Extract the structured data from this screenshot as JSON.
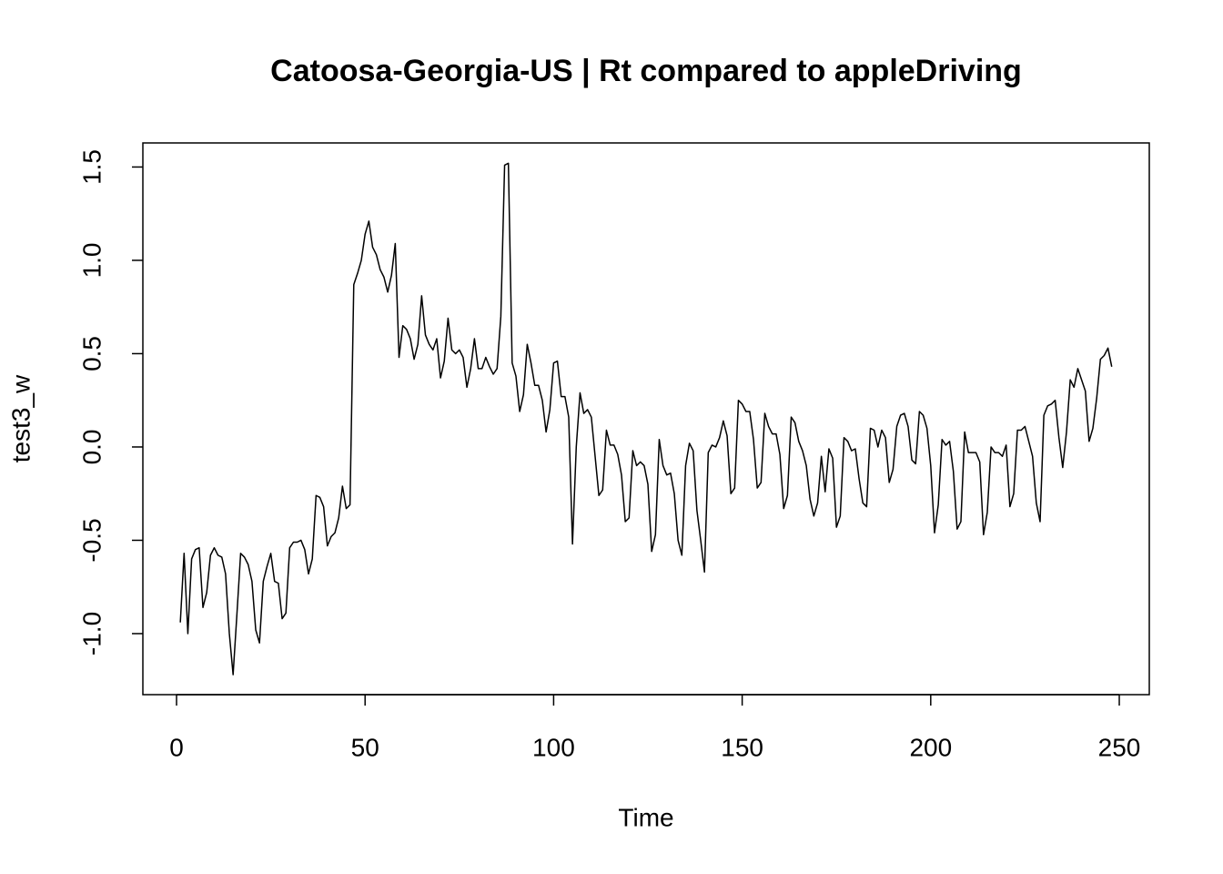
{
  "chart_data": {
    "type": "line",
    "title": "Catoosa-Georgia-US | Rt compared to appleDriving",
    "xlabel": "Time",
    "ylabel": "test3_w",
    "x": [
      1,
      2,
      3,
      4,
      5,
      6,
      7,
      8,
      9,
      10,
      11,
      12,
      13,
      14,
      15,
      16,
      17,
      18,
      19,
      20,
      21,
      22,
      23,
      24,
      25,
      26,
      27,
      28,
      29,
      30,
      31,
      32,
      33,
      34,
      35,
      36,
      37,
      38,
      39,
      40,
      41,
      42,
      43,
      44,
      45,
      46,
      47,
      48,
      49,
      50,
      51,
      52,
      53,
      54,
      55,
      56,
      57,
      58,
      59,
      60,
      61,
      62,
      63,
      64,
      65,
      66,
      67,
      68,
      69,
      70,
      71,
      72,
      73,
      74,
      75,
      76,
      77,
      78,
      79,
      80,
      81,
      82,
      83,
      84,
      85,
      86,
      87,
      88,
      89,
      90,
      91,
      92,
      93,
      94,
      95,
      96,
      97,
      98,
      99,
      100,
      101,
      102,
      103,
      104,
      105,
      106,
      107,
      108,
      109,
      110,
      111,
      112,
      113,
      114,
      115,
      116,
      117,
      118,
      119,
      120,
      121,
      122,
      123,
      124,
      125,
      126,
      127,
      128,
      129,
      130,
      131,
      132,
      133,
      134,
      135,
      136,
      137,
      138,
      139,
      140,
      141,
      142,
      143,
      144,
      145,
      146,
      147,
      148,
      149,
      150,
      151,
      152,
      153,
      154,
      155,
      156,
      157,
      158,
      159,
      160,
      161,
      162,
      163,
      164,
      165,
      166,
      167,
      168,
      169,
      170,
      171,
      172,
      173,
      174,
      175,
      176,
      177,
      178,
      179,
      180,
      181,
      182,
      183,
      184,
      185,
      186,
      187,
      188,
      189,
      190,
      191,
      192,
      193,
      194,
      195,
      196,
      197,
      198,
      199,
      200,
      201,
      202,
      203,
      204,
      205,
      206,
      207,
      208,
      209,
      210,
      211,
      212,
      213,
      214,
      215,
      216,
      217,
      218,
      219,
      220,
      221,
      222,
      223,
      224,
      225,
      226,
      227,
      228,
      229,
      230,
      231,
      232,
      233,
      234,
      235,
      236,
      237,
      238,
      239,
      240,
      241,
      242,
      243,
      244,
      245,
      246,
      247,
      248
    ],
    "series": [
      {
        "name": "test3_w",
        "color": "#000000",
        "values": [
          -0.94,
          -0.57,
          -1.0,
          -0.6,
          -0.55,
          -0.54,
          -0.86,
          -0.78,
          -0.58,
          -0.54,
          -0.58,
          -0.59,
          -0.68,
          -1.0,
          -1.22,
          -0.9,
          -0.57,
          -0.59,
          -0.63,
          -0.72,
          -0.98,
          -1.05,
          -0.72,
          -0.64,
          -0.57,
          -0.72,
          -0.73,
          -0.92,
          -0.89,
          -0.54,
          -0.51,
          -0.51,
          -0.5,
          -0.55,
          -0.68,
          -0.6,
          -0.26,
          -0.27,
          -0.32,
          -0.53,
          -0.48,
          -0.46,
          -0.38,
          -0.21,
          -0.33,
          -0.31,
          0.87,
          0.93,
          1.0,
          1.14,
          1.21,
          1.07,
          1.03,
          0.95,
          0.91,
          0.83,
          0.92,
          1.09,
          0.48,
          0.65,
          0.63,
          0.58,
          0.47,
          0.55,
          0.81,
          0.6,
          0.55,
          0.52,
          0.58,
          0.37,
          0.46,
          0.69,
          0.52,
          0.5,
          0.52,
          0.48,
          0.32,
          0.42,
          0.58,
          0.42,
          0.42,
          0.48,
          0.43,
          0.39,
          0.42,
          0.7,
          1.51,
          1.52,
          0.45,
          0.38,
          0.19,
          0.28,
          0.55,
          0.45,
          0.33,
          0.33,
          0.25,
          0.08,
          0.2,
          0.45,
          0.46,
          0.27,
          0.27,
          0.16,
          -0.52,
          0.0,
          0.29,
          0.18,
          0.2,
          0.16,
          -0.05,
          -0.26,
          -0.23,
          0.09,
          0.01,
          0.01,
          -0.04,
          -0.15,
          -0.4,
          -0.38,
          -0.02,
          -0.1,
          -0.08,
          -0.1,
          -0.2,
          -0.56,
          -0.47,
          0.04,
          -0.1,
          -0.15,
          -0.14,
          -0.25,
          -0.5,
          -0.58,
          -0.1,
          0.02,
          -0.02,
          -0.34,
          -0.5,
          -0.67,
          -0.03,
          0.01,
          0.0,
          0.05,
          0.14,
          0.06,
          -0.25,
          -0.22,
          0.25,
          0.23,
          0.19,
          0.19,
          0.04,
          -0.22,
          -0.19,
          0.18,
          0.11,
          0.07,
          0.07,
          -0.04,
          -0.33,
          -0.26,
          0.16,
          0.13,
          0.03,
          -0.02,
          -0.1,
          -0.28,
          -0.37,
          -0.3,
          -0.05,
          -0.24,
          -0.01,
          -0.06,
          -0.43,
          -0.37,
          0.05,
          0.03,
          -0.02,
          -0.01,
          -0.17,
          -0.3,
          -0.32,
          0.1,
          0.09,
          0.0,
          0.09,
          0.05,
          -0.19,
          -0.12,
          0.11,
          0.17,
          0.18,
          0.11,
          -0.07,
          -0.09,
          0.19,
          0.17,
          0.1,
          -0.1,
          -0.46,
          -0.31,
          0.04,
          0.01,
          0.03,
          -0.13,
          -0.44,
          -0.4,
          0.08,
          -0.03,
          -0.03,
          -0.03,
          -0.08,
          -0.47,
          -0.35,
          0.0,
          -0.03,
          -0.03,
          -0.05,
          0.01,
          -0.32,
          -0.25,
          0.09,
          0.09,
          0.11,
          0.03,
          -0.05,
          -0.3,
          -0.4,
          0.17,
          0.22,
          0.23,
          0.25,
          0.05,
          -0.11,
          0.08,
          0.36,
          0.32,
          0.42,
          0.36,
          0.3,
          0.03,
          0.1,
          0.26,
          0.47,
          0.49,
          0.53,
          0.43
        ]
      }
    ],
    "xlim": [
      -8.93,
      257.96
    ],
    "ylim": [
      -1.327,
      1.629
    ],
    "xticks": [
      0,
      50,
      100,
      150,
      200,
      250
    ],
    "yticks": [
      {
        "value": -1,
        "label": "-1.0"
      },
      -0.5,
      {
        "value": 0,
        "label": "0.0"
      },
      0.5,
      {
        "value": 1,
        "label": "1.0"
      },
      1.5
    ],
    "grid": false
  }
}
